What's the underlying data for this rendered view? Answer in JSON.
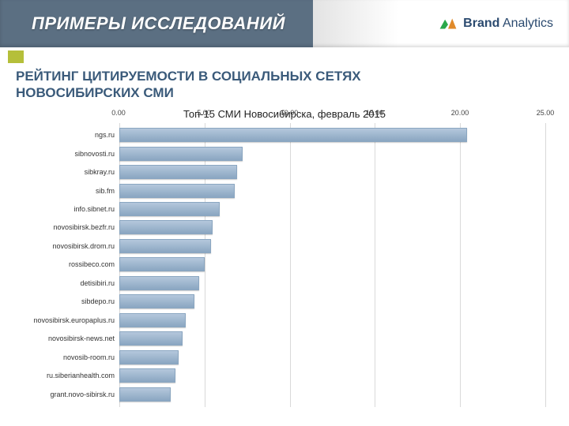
{
  "header": {
    "title": "ПРИМЕРЫ ИССЛЕДОВАНИЙ",
    "brand_name_strong": "Brand",
    "brand_name_rest": "Analytics"
  },
  "slide": {
    "title_line1": "РЕЙТИНГ ЦИТИРУЕМОСТИ В СОЦИАЛЬНЫХ СЕТЯХ",
    "title_line2": "НОВОСИБИРСКИХ СМИ",
    "chart_title": "Топ-15 СМИ Новосибирска, февраль 2015"
  },
  "chart": {
    "type": "bar-horizontal",
    "x_axis": {
      "min": 0.0,
      "max": 25.0,
      "ticks": [
        0.0,
        5.0,
        10.0,
        15.0,
        20.0,
        25.0
      ],
      "tick_labels": [
        "0.00",
        "5.00",
        "10.00",
        "15.00",
        "20.00",
        "25.00"
      ]
    },
    "grid_color": "#d9d9d9",
    "background_color": "#ffffff",
    "bar_fill": "#b4c7dc",
    "bar_border": "#8aa6c1",
    "label_fontsize": 9,
    "axis_label_fontsize": 9,
    "series": [
      {
        "label": "ngs.ru",
        "value": 20.3
      },
      {
        "label": "sibnovosti.ru",
        "value": 7.15
      },
      {
        "label": "sibkray.ru",
        "value": 6.8
      },
      {
        "label": "sib.fm",
        "value": 6.7
      },
      {
        "label": "info.sibnet.ru",
        "value": 5.8
      },
      {
        "label": "novosibirsk.bezfr.ru",
        "value": 5.4
      },
      {
        "label": "novosibirsk.drom.ru",
        "value": 5.3
      },
      {
        "label": "rossibeco.com",
        "value": 4.9
      },
      {
        "label": "detisibiri.ru",
        "value": 4.6
      },
      {
        "label": "sibdepo.ru",
        "value": 4.3
      },
      {
        "label": "novosibirsk.europaplus.ru",
        "value": 3.8
      },
      {
        "label": "novosibirsk-news.net",
        "value": 3.6
      },
      {
        "label": "novosib-room.ru",
        "value": 3.4
      },
      {
        "label": "ru.siberianhealth.com",
        "value": 3.2
      },
      {
        "label": "grant.novo-sibirsk.ru",
        "value": 2.9
      }
    ]
  },
  "brand_logo_colors": {
    "left": "#2aa84a",
    "right": "#e08a2a",
    "font": "#2b4a6f"
  }
}
